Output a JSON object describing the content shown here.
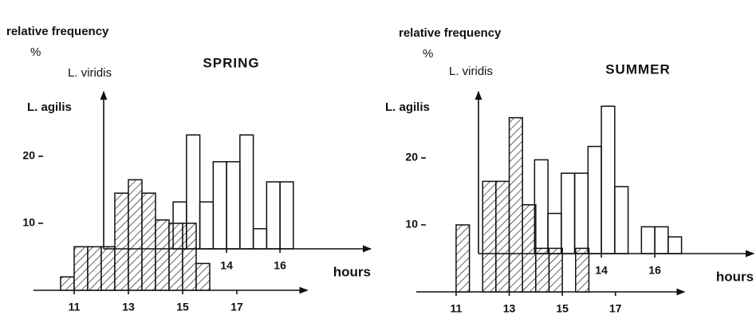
{
  "charts": [
    {
      "type": "histogram",
      "title": "SPRING",
      "y_label": "relative frequency",
      "y_unit": "%",
      "x_label": "hours",
      "xlim": [
        9.5,
        19.6
      ],
      "xticks": [
        11,
        13,
        15,
        17
      ],
      "ylim": [
        0,
        30
      ],
      "yticks": [
        10,
        20
      ],
      "series": [
        {
          "name": "L. agilis",
          "style": "hatched",
          "bins": [
            10.5,
            11,
            11.5,
            12,
            12.5,
            13,
            13.5,
            14,
            14.5,
            15,
            15.5,
            16
          ],
          "values": [
            2,
            6.5,
            6.5,
            6.5,
            14.5,
            16.5,
            14.5,
            10.5,
            10,
            10,
            4
          ]
        },
        {
          "name": "L. viridis",
          "style": "open",
          "xlim": [
            9.4,
            19.4
          ],
          "xticks": [
            14,
            16
          ],
          "bins": [
            12,
            12.5,
            13,
            13.5,
            14,
            14.5,
            15,
            15.5,
            16,
            16.5
          ],
          "values": [
            7,
            17,
            7,
            13,
            13,
            17,
            3,
            10,
            10
          ]
        }
      ]
    },
    {
      "type": "histogram",
      "title": "SUMMER",
      "y_label": "relative frequency",
      "y_unit": "%",
      "x_label": "hours",
      "xlim": [
        9.5,
        19.6
      ],
      "xticks": [
        11,
        13,
        15,
        17
      ],
      "ylim": [
        0,
        30
      ],
      "yticks": [
        10,
        20
      ],
      "series": [
        {
          "name": "L. agilis",
          "style": "hatched",
          "bins": [
            11,
            11.5,
            12,
            12.5,
            13,
            13.5,
            14,
            14.5,
            15,
            15.5,
            16
          ],
          "values": [
            10,
            0,
            16.5,
            16.5,
            26,
            13,
            6.5,
            6.5,
            0,
            6.5
          ]
        },
        {
          "name": "L. viridis",
          "style": "open",
          "xlim": [
            9.4,
            19.7
          ],
          "xticks": [
            14,
            16
          ],
          "bins": [
            11.5,
            12,
            12.5,
            13,
            13.5,
            14,
            14.5,
            15,
            15.5,
            16,
            16.5,
            17
          ],
          "values": [
            14,
            6,
            12,
            12,
            16,
            22,
            10,
            0,
            4,
            4,
            2.5
          ]
        }
      ]
    }
  ]
}
